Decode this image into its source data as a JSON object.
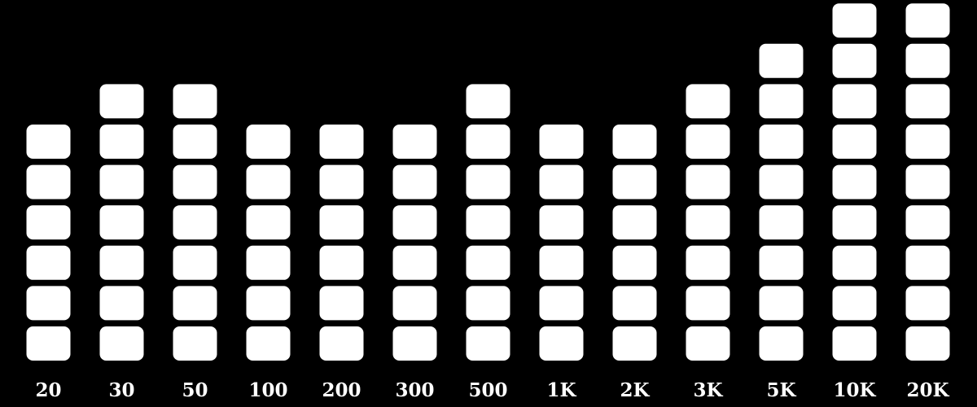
{
  "chart_data": {
    "type": "bar",
    "categories": [
      "20",
      "30",
      "50",
      "100",
      "200",
      "300",
      "500",
      "1K",
      "2K",
      "3K",
      "5K",
      "10K",
      "20K"
    ],
    "values": [
      6,
      7,
      7,
      6,
      6,
      6,
      7,
      6,
      6,
      7,
      8,
      9,
      9
    ],
    "ylim": [
      0,
      9
    ],
    "grid": false,
    "legend": "none",
    "colors": {
      "background": "#000000",
      "block": "#ffffff",
      "label": "#ffffff"
    }
  }
}
